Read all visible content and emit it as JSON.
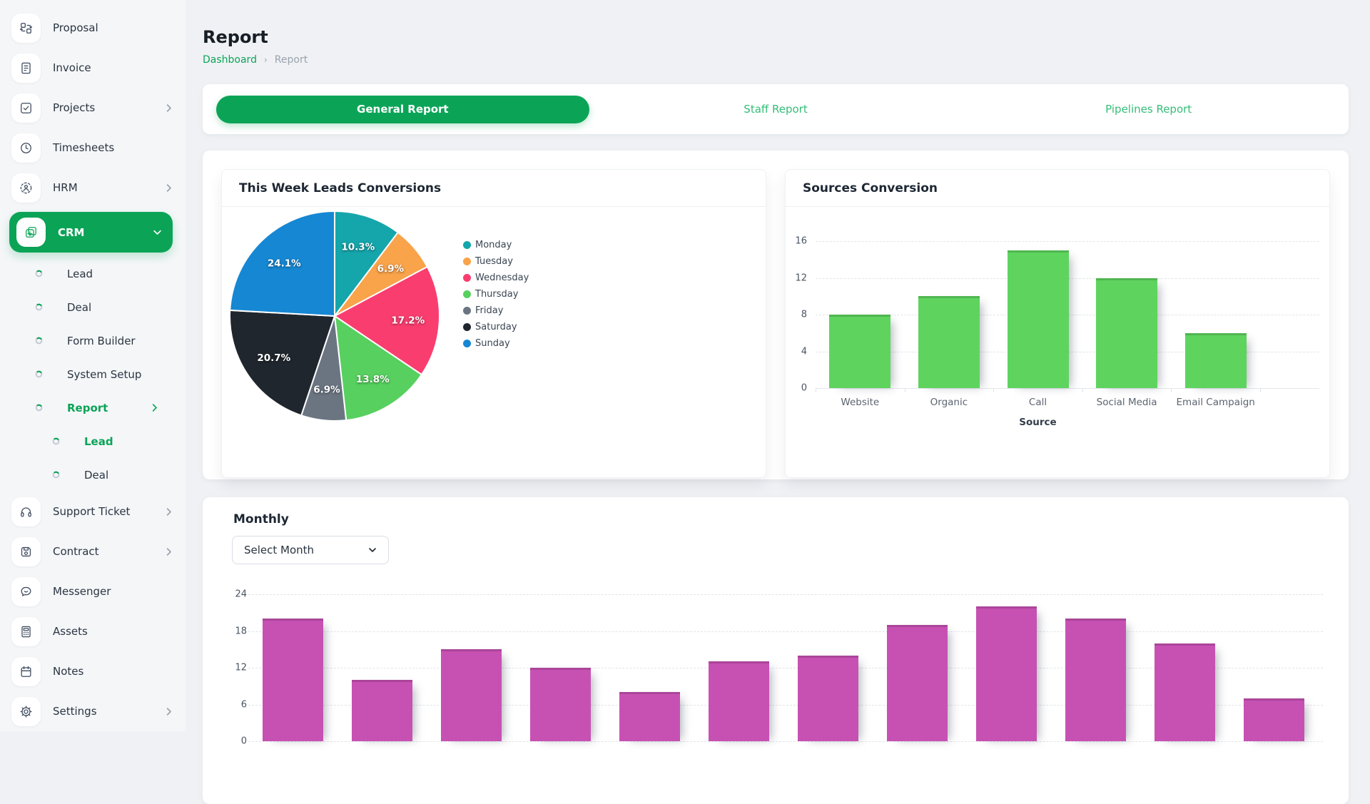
{
  "sidebar": {
    "items": [
      {
        "label": "Proposal",
        "icon": "proposal-icon"
      },
      {
        "label": "Invoice",
        "icon": "invoice-icon"
      },
      {
        "label": "Projects",
        "icon": "projects-icon",
        "chevron": "right"
      },
      {
        "label": "Timesheets",
        "icon": "timesheets-icon"
      },
      {
        "label": "HRM",
        "icon": "hrm-icon",
        "chevron": "right"
      },
      {
        "label": "CRM",
        "icon": "crm-icon",
        "active": true,
        "chevron": "down",
        "children": [
          {
            "label": "Lead"
          },
          {
            "label": "Deal"
          },
          {
            "label": "Form Builder"
          },
          {
            "label": "System Setup"
          },
          {
            "label": "Report",
            "active": true,
            "chevron": "right",
            "children": [
              {
                "label": "Lead",
                "active": true
              },
              {
                "label": "Deal"
              }
            ]
          }
        ]
      },
      {
        "label": "Support Ticket",
        "icon": "support-ticket-icon",
        "chevron": "right"
      },
      {
        "label": "Contract",
        "icon": "contract-icon",
        "chevron": "right"
      },
      {
        "label": "Messenger",
        "icon": "messenger-icon"
      },
      {
        "label": "Assets",
        "icon": "assets-icon"
      },
      {
        "label": "Notes",
        "icon": "notes-icon"
      },
      {
        "label": "Settings",
        "icon": "settings-icon",
        "chevron": "right"
      }
    ]
  },
  "header": {
    "title": "Report",
    "breadcrumb": {
      "0": "Dashboard",
      "1": "Report"
    }
  },
  "tabs": [
    {
      "label": "General Report",
      "active": true
    },
    {
      "label": "Staff Report",
      "active": false
    },
    {
      "label": "Pipelines Report",
      "active": false
    }
  ],
  "monthly": {
    "title": "Monthly",
    "select_label": "Select Month"
  },
  "colors": {
    "accent_green": "#0ba457",
    "tab_text_green": "#35bd78",
    "sources_bar_green": "#5ed45f",
    "monthly_bar_magenta": "#c751b3",
    "sidebar_icon": "#3e4a5e"
  },
  "chart_data": [
    {
      "type": "pie",
      "title": "This Week Leads Conversions",
      "labels": [
        "Monday",
        "Tuesday",
        "Wednesday",
        "Thursday",
        "Friday",
        "Saturday",
        "Sunday"
      ],
      "values": [
        10.3,
        6.9,
        17.2,
        13.8,
        6.9,
        20.7,
        24.1
      ],
      "data_labels": [
        "10.3%",
        "6.9%",
        "17.2%",
        "13.8%",
        "6.9%",
        "20.7%",
        "24.1%"
      ],
      "colors": [
        "#14a6ab",
        "#f9a34a",
        "#fa3d6f",
        "#57d05f",
        "#6b7582",
        "#20262e",
        "#1687d3"
      ],
      "legend_position": "right",
      "start_angle_deg": -90,
      "direction": "clockwise"
    },
    {
      "type": "bar",
      "title": "Sources Conversion",
      "categories": [
        "Website",
        "Organic",
        "Call",
        "Social Media",
        "Email Campaign"
      ],
      "values": [
        8,
        10,
        15,
        12,
        6
      ],
      "xlabel": "Source",
      "ylabel": "",
      "ylim": [
        0,
        16
      ],
      "yticks": [
        0,
        4,
        8,
        12,
        16
      ],
      "grid": "horizontal-dashed",
      "bar_color": "#5ed45f"
    },
    {
      "type": "bar",
      "title": "Monthly",
      "categories": [
        "",
        "",
        "",
        "",
        "",
        "",
        "",
        "",
        "",
        "",
        "",
        ""
      ],
      "values": [
        20,
        10,
        15,
        12,
        8,
        13,
        14,
        19,
        22,
        20,
        16,
        7
      ],
      "xlabel": "",
      "ylabel": "",
      "ylim": [
        0,
        24
      ],
      "yticks": [
        0,
        6,
        12,
        18,
        24
      ],
      "grid": "horizontal-dashed",
      "bar_color": "#c751b3",
      "note": "x-axis labels cut off by viewport bottom"
    }
  ]
}
